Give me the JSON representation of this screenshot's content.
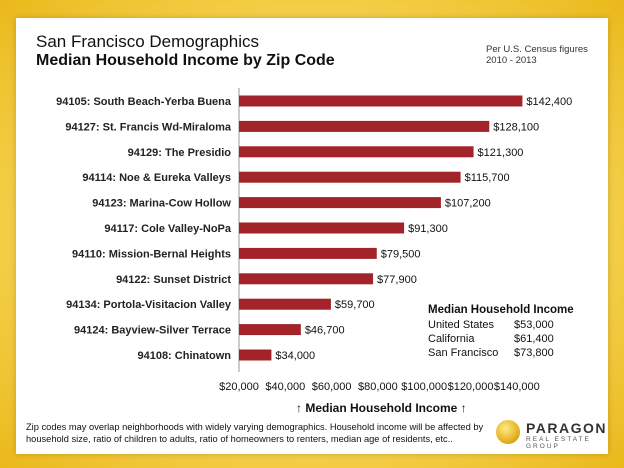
{
  "title": "San Francisco Demographics",
  "subtitle": "Median Household Income by Zip Code",
  "source_note": "Per U.S. Census figures 2010 - 2013",
  "chart_data": {
    "type": "bar",
    "orientation": "horizontal",
    "categories": [
      "94105: South Beach-Yerba Buena",
      "94127: St. Francis Wd-Miraloma",
      "94129: The Presidio",
      "94114: Noe & Eureka Valleys",
      "94123: Marina-Cow Hollow",
      "94117: Cole Valley-NoPa",
      "94110: Mission-Bernal Heights",
      "94122: Sunset District",
      "94134: Portola-Visitacion Valley",
      "94124: Bayview-Silver Terrace",
      "94108: Chinatown"
    ],
    "values": [
      142400,
      128100,
      121300,
      115700,
      107200,
      91300,
      79500,
      77900,
      59700,
      46700,
      34000
    ],
    "value_labels": [
      "$142,400",
      "$128,100",
      "$121,300",
      "$115,700",
      "$107,200",
      "$91,300",
      "$79,500",
      "$77,900",
      "$59,700",
      "$46,700",
      "$34,000"
    ],
    "xlim": [
      20000,
      150000
    ],
    "xticks": [
      "$20,000",
      "$40,000",
      "$60,000",
      "$80,000",
      "$100,000",
      "$120,000",
      "$140,000"
    ],
    "xlabel": "↑ Median Household Income ↑",
    "ylabel": "",
    "bar_color": "#a3232b",
    "grid": false
  },
  "inset": {
    "heading": "Median Household Income",
    "rows": [
      {
        "name": "United States",
        "value": "$53,000"
      },
      {
        "name": "California",
        "value": "$61,400"
      },
      {
        "name": "San Francisco",
        "value": "$73,800"
      }
    ]
  },
  "footer": "Zip codes may overlap neighborhoods with widely varying demographics. Household income will be affected by household size, ratio of children to adults, ratio of homeowners to renters, median age of residents, etc..",
  "logo": {
    "name": "PARAGON",
    "tagline": "REAL ESTATE GROUP"
  }
}
